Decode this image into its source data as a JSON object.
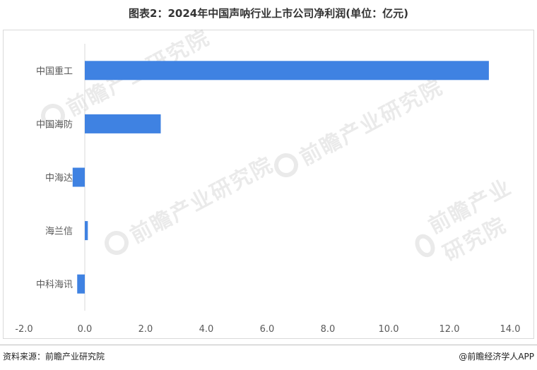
{
  "title": "图表2：2024年中国声呐行业上市公司净利润(单位：亿元)",
  "source_text": "资料来源：前瞻产业研究院",
  "brand_text": "@前瞻经济学人APP",
  "watermark_text": "前瞻产业研究院",
  "colors": {
    "bar": "#3f82e2",
    "axis": "#d9d9d9",
    "text": "#595959"
  },
  "chart_data": {
    "type": "bar",
    "orientation": "horizontal",
    "title": "图表2：2024年中国声呐行业上市公司净利润(单位：亿元)",
    "xlabel": "",
    "ylabel": "",
    "categories": [
      "中国重工",
      "中国海防",
      "中海达",
      "海兰信",
      "中科海讯"
    ],
    "values": [
      13.3,
      2.5,
      -0.4,
      0.1,
      -0.25
    ],
    "xlim": [
      -2,
      14
    ],
    "x_ticks": [
      -2,
      0,
      2,
      4,
      6,
      8,
      10,
      12,
      14
    ],
    "x_tick_labels": [
      "-2.0",
      "0.0",
      "2.0",
      "4.0",
      "6.0",
      "8.0",
      "10.0",
      "12.0",
      "14.0"
    ],
    "grid": false,
    "legend": "none"
  }
}
